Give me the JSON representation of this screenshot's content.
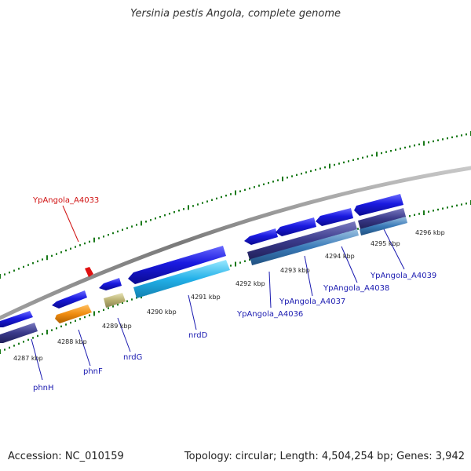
{
  "title": "Yersinia pestis Angola, complete genome",
  "footer": {
    "accession": "Accession: NC_010159",
    "summary": "Topology: circular; Length: 4,504,254 bp; Genes: 3,942"
  },
  "colors": {
    "backbone": "#8a8a8a",
    "tick_green": "#1a7a1a",
    "gene_blue": "#1a1ae0",
    "gene_dark": "#3a3a8a",
    "gene_lightblue": "#22b0e8",
    "gene_steelblue": "#3a7ab8",
    "gene_orange": "#f08c10",
    "gene_khaki": "#b8b070",
    "label_blue": "#1a1ab0",
    "label_red": "#d01010"
  },
  "kbp_labels": [
    "4287 kbp",
    "4288 kbp",
    "4289 kbp",
    "4290 kbp",
    "4291 kbp",
    "4292 kbp",
    "4293 kbp",
    "4294 kbp",
    "4295 kbp",
    "4296 kbp"
  ],
  "gene_labels": [
    {
      "name": "phnH",
      "color": "blue"
    },
    {
      "name": "phnF",
      "color": "blue"
    },
    {
      "name": "nrdG",
      "color": "blue"
    },
    {
      "name": "nrdD",
      "color": "blue"
    },
    {
      "name": "YpAngola_A4036",
      "color": "blue"
    },
    {
      "name": "YpAngola_A4037",
      "color": "blue"
    },
    {
      "name": "YpAngola_A4038",
      "color": "blue"
    },
    {
      "name": "YpAngola_A4039",
      "color": "blue"
    },
    {
      "name": "YpAngola_A4033",
      "color": "red"
    }
  ]
}
